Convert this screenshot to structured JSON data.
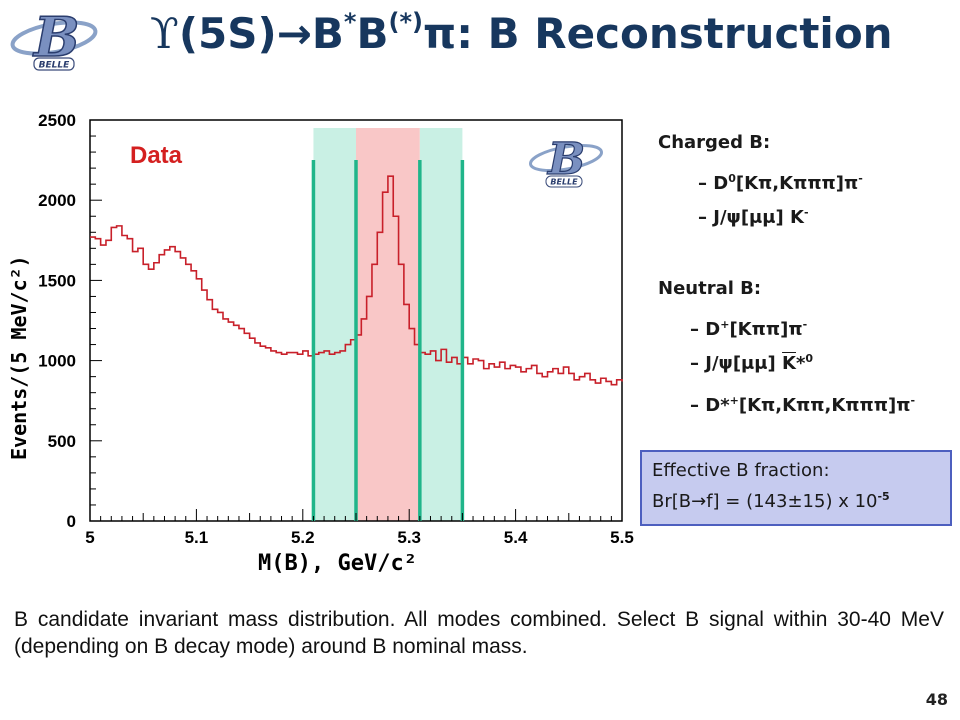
{
  "title": {
    "upsilon": "ϒ",
    "main": "(5S)→B",
    "sup1": "*",
    "mid": "B",
    "sup2": "(*)",
    "end": "π:  B Reconstruction"
  },
  "logo": {
    "letter": "B",
    "text": "BELLE"
  },
  "plot_label": "Data",
  "chart_data": {
    "type": "histogram",
    "xlabel": "M(B), GeV/c²",
    "ylabel": "Events/(5 MeV/c²)",
    "xlim": [
      5.0,
      5.5
    ],
    "ylim": [
      0,
      2500
    ],
    "x_ticks": [
      "5",
      "5.1",
      "5.2",
      "5.3",
      "5.4",
      "5.5"
    ],
    "y_ticks": [
      "0",
      "500",
      "1000",
      "1500",
      "2000",
      "2500"
    ],
    "bin_width": 0.005,
    "bins_start": 5.0,
    "values": [
      1770,
      1760,
      1720,
      1750,
      1830,
      1840,
      1780,
      1760,
      1680,
      1700,
      1600,
      1570,
      1610,
      1660,
      1690,
      1710,
      1680,
      1640,
      1600,
      1560,
      1510,
      1440,
      1380,
      1320,
      1300,
      1260,
      1240,
      1220,
      1200,
      1170,
      1140,
      1110,
      1090,
      1080,
      1060,
      1050,
      1040,
      1050,
      1050,
      1040,
      1060,
      1030,
      1040,
      1050,
      1060,
      1040,
      1050,
      1060,
      1100,
      1130,
      1160,
      1260,
      1400,
      1600,
      1800,
      2050,
      2150,
      1900,
      1600,
      1350,
      1200,
      1100,
      1050,
      1040,
      1060,
      1000,
      1070,
      990,
      1020,
      980,
      1020,
      980,
      1010,
      1000,
      950,
      980,
      960,
      990,
      950,
      970,
      960,
      930,
      950,
      970,
      920,
      900,
      930,
      950,
      920,
      960,
      920,
      880,
      900,
      920,
      880,
      860,
      890,
      870,
      850,
      880,
      870
    ],
    "bands": {
      "signal": [
        5.25,
        5.31
      ],
      "sideband_low": [
        5.21,
        5.25
      ],
      "sideband_high": [
        5.31,
        5.35
      ]
    },
    "colors": {
      "histogram": "#c8202a",
      "signal": "#f9c7c7",
      "sideband": "#c9f0e4",
      "lines": "#20b58a"
    }
  },
  "charged": {
    "heading": "Charged B:",
    "line1_pre": "– D",
    "line1_sup": "0",
    "line1_post": "[Kπ,Kπππ]π",
    "line1_sup2": "-",
    "line2_pre": "– J/ψ[μμ] K",
    "line2_sup": "-"
  },
  "neutral": {
    "heading": "Neutral B:",
    "line1_pre": "– D",
    "line1_sup": "+",
    "line1_post": "[Kππ]π",
    "line1_sup2": "-",
    "line2_pre": "– J/ψ[μμ] ",
    "line2_over": "K",
    "line2_post": "*",
    "line2_sup": "0",
    "line3_pre": "– D*",
    "line3_sup": "+",
    "line3_post": "[Kπ,Kππ,Kπππ]π",
    "line3_sup2": "-"
  },
  "fraction": {
    "line1": "Effective B fraction:",
    "line2": "Br[B→f] = (143±15) x 10",
    "exp": "-5"
  },
  "caption": "B candidate invariant mass distribution. All modes combined. Select B signal within 30-40 MeV (depending on B decay mode) around B nominal mass.",
  "page_number": "48"
}
